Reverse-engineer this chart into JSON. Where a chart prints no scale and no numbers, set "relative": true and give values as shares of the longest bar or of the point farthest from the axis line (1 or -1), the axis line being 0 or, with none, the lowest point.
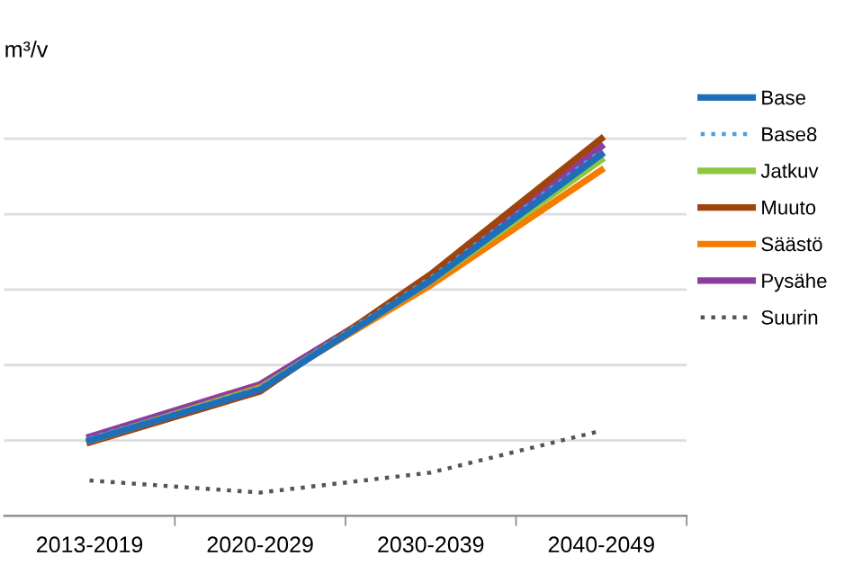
{
  "chart_data": {
    "type": "line",
    "relative": true,
    "ylabel": "m³/v",
    "categories": [
      "2013-2019",
      "2020-2029",
      "2030-2039",
      "2040-2049"
    ],
    "series": [
      {
        "name": "Base",
        "color": "#1f6fb8",
        "values": [
          0.2,
          0.335,
          0.624,
          0.958
        ]
      },
      {
        "name": "Base8",
        "color": "#4aa0e6",
        "line_style": "dotted",
        "values": [
          0.206,
          0.342,
          0.632,
          0.968
        ]
      },
      {
        "name": "Jatkuv",
        "color": "#8dc63f",
        "values": [
          0.2,
          0.338,
          0.622,
          0.944
        ]
      },
      {
        "name": "Muuto",
        "color": "#a0440e",
        "values": [
          0.195,
          0.33,
          0.641,
          1
        ]
      },
      {
        "name": "Säästö",
        "color": "#f57c00",
        "values": [
          0.2,
          0.341,
          0.612,
          0.917
        ]
      },
      {
        "name": "Pysähe",
        "color": "#8a3fa0",
        "values": [
          0.21,
          0.349,
          0.625,
          0.979
        ]
      },
      {
        "name": "Suurin",
        "color": "#555555",
        "line_style": "dotted",
        "values": [
          0.094,
          0.062,
          0.115,
          0.226
        ]
      }
    ],
    "grid": "y",
    "legend": "right"
  }
}
